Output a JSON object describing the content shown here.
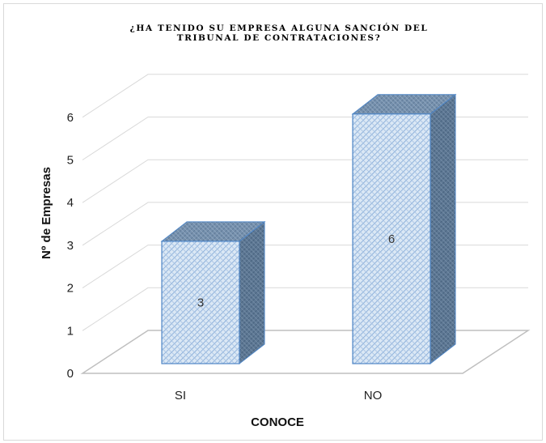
{
  "chart_data": {
    "type": "bar",
    "title": "¿HA TENIDO SU EMPRESA ALGUNA SANCIÓN DEL TRIBUNAL DE CONTRATACIONES?",
    "title_lines": [
      "¿HA TENIDO SU EMPRESA ALGUNA SANCIÓN DEL",
      "TRIBUNAL DE CONTRATACIONES?"
    ],
    "xlabel": "CONOCE",
    "ylabel": "Nº de Empresas",
    "categories": [
      "SI",
      "NO"
    ],
    "values": [
      3,
      6
    ],
    "data_labels": [
      "3",
      "6"
    ],
    "ylim": [
      0,
      6
    ],
    "yticks": [
      "0",
      "1",
      "2",
      "3",
      "4",
      "5",
      "6"
    ],
    "grid": true,
    "legend": "none",
    "style": "3d-column",
    "colors": {
      "bar_front": "#dbe8f5",
      "bar_pattern": "#5b8fc9",
      "bar_side": "#5a7590",
      "bar_top": "#6f8aa6",
      "bar_edge": "#4f86c6",
      "grid": "#d9d9d9",
      "floor": "#bfbfbf"
    }
  }
}
